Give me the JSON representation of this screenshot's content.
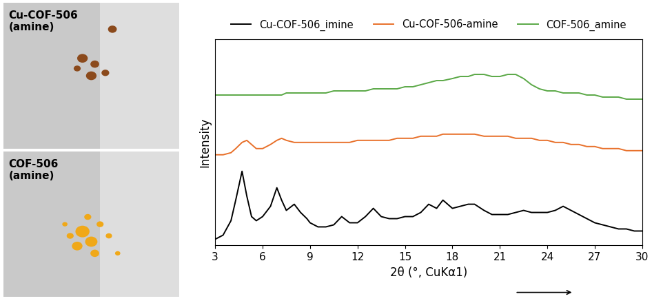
{
  "panels": [
    {
      "label": "Cu-COF-506\n(amine)",
      "color": "#8b4a1c"
    },
    {
      "label": "COF-506\n(amine)",
      "color": "#f0a818"
    }
  ],
  "chart_data": {
    "type": "line",
    "xlabel": "2θ (°, CuKα1)",
    "ylabel": "Intensity",
    "legend": "upper center",
    "tick_labels": "x",
    "xlim": [
      3,
      30
    ],
    "xticks": [
      3,
      6,
      9,
      12,
      15,
      18,
      21,
      24,
      27,
      30
    ],
    "ylim": [
      0,
      100
    ],
    "yticks": [],
    "x": [
      3,
      3.5,
      4,
      4.3,
      4.7,
      5.0,
      5.3,
      5.6,
      6,
      6.5,
      6.9,
      7.2,
      7.5,
      8.0,
      8.4,
      8.8,
      9,
      9.5,
      10,
      10.5,
      11,
      11.5,
      12,
      12.5,
      13,
      13.5,
      14,
      14.5,
      15,
      15.5,
      16,
      16.5,
      17,
      17.4,
      18,
      18.5,
      19,
      19.4,
      20,
      20.5,
      21,
      21.5,
      22,
      22.5,
      23,
      23.5,
      24,
      24.5,
      25,
      25.5,
      26,
      26.5,
      27,
      27.5,
      28,
      28.5,
      29,
      29.5,
      30
    ],
    "series": [
      {
        "name": "Cu-COF-506_imine",
        "color": "#000000",
        "values": [
          3,
          5,
          12,
          22,
          36,
          24,
          14,
          12,
          14,
          19,
          28,
          22,
          17,
          20,
          16,
          13,
          11,
          9,
          9,
          10,
          14,
          11,
          11,
          14,
          18,
          14,
          13,
          13,
          14,
          14,
          16,
          20,
          18,
          22,
          18,
          19,
          20,
          20,
          17,
          15,
          15,
          15,
          16,
          17,
          16,
          16,
          16,
          17,
          19,
          17,
          15,
          13,
          11,
          10,
          9,
          8,
          8,
          7,
          7
        ]
      },
      {
        "name": "Cu-COF-506-amine",
        "color": "#e8702a",
        "values": [
          44,
          44,
          45,
          47,
          50,
          51,
          49,
          47,
          47,
          49,
          51,
          52,
          51,
          50,
          50,
          50,
          50,
          50,
          50,
          50,
          50,
          50,
          51,
          51,
          51,
          51,
          51,
          52,
          52,
          52,
          53,
          53,
          53,
          54,
          54,
          54,
          54,
          54,
          53,
          53,
          53,
          53,
          52,
          52,
          52,
          51,
          51,
          50,
          50,
          49,
          49,
          48,
          48,
          47,
          47,
          47,
          46,
          46,
          46
        ]
      },
      {
        "name": "COF-506_amine",
        "color": "#5aa846",
        "values": [
          73,
          73,
          73,
          73,
          73,
          73,
          73,
          73,
          73,
          73,
          73,
          73,
          74,
          74,
          74,
          74,
          74,
          74,
          74,
          75,
          75,
          75,
          75,
          75,
          76,
          76,
          76,
          76,
          77,
          77,
          78,
          79,
          80,
          80,
          81,
          82,
          82,
          83,
          83,
          82,
          82,
          83,
          83,
          81,
          78,
          76,
          75,
          75,
          74,
          74,
          74,
          73,
          73,
          72,
          72,
          72,
          71,
          71,
          71
        ]
      }
    ]
  }
}
